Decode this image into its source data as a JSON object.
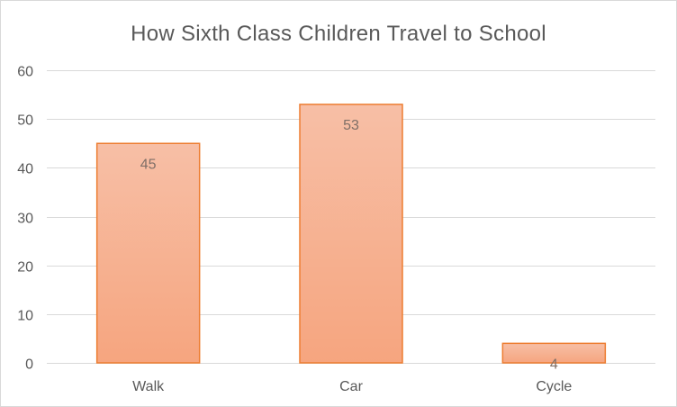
{
  "chart_data": {
    "type": "bar",
    "title": "How Sixth Class Children Travel to School",
    "categories": [
      "Walk",
      "Car",
      "Cycle"
    ],
    "values": [
      45,
      53,
      4
    ],
    "data_labels": [
      "45",
      "53",
      "4"
    ],
    "xlabel": "",
    "ylabel": "",
    "ylim": [
      0,
      60
    ],
    "yticks": [
      0,
      10,
      20,
      30,
      40,
      50,
      60
    ],
    "grid": true,
    "legend": "none"
  },
  "colors": {
    "bar_fill_top": "#f7bfa6",
    "bar_fill_bottom": "#f6a57f",
    "bar_stroke": "#ed7d31",
    "grid": "#d9d9d9",
    "text": "#595959"
  }
}
